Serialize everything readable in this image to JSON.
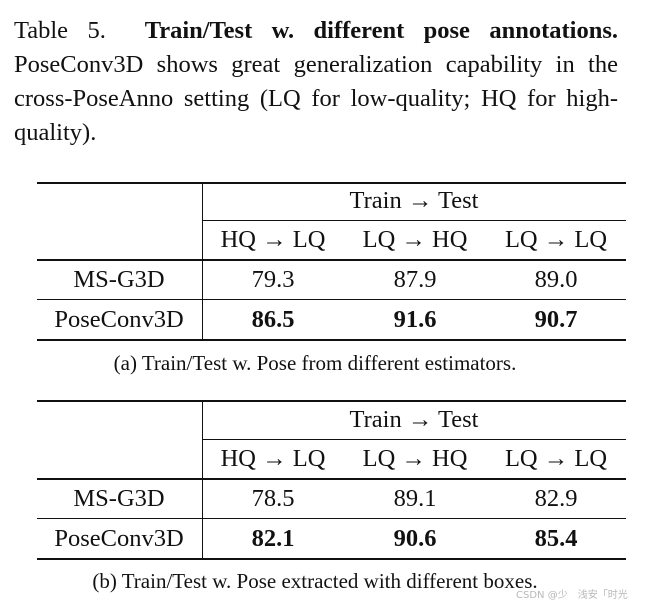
{
  "caption": {
    "label": "Table 5.",
    "title": "Train/Test w.  different pose annotations.",
    "body": "PoseConv3D shows great generalization capability in the cross-PoseAnno setting (LQ for low-quality; HQ for high-quality)."
  },
  "tables": [
    {
      "group_header": "Train → Test",
      "columns": [
        "HQ → LQ",
        "LQ → HQ",
        "LQ → LQ"
      ],
      "rows": [
        {
          "method": "MS-G3D",
          "values": [
            "79.3",
            "87.9",
            "89.0"
          ],
          "bold": false
        },
        {
          "method": "PoseConv3D",
          "values": [
            "86.5",
            "91.6",
            "90.7"
          ],
          "bold": true
        }
      ],
      "subcaption": "(a) Train/Test w. Pose from different estimators."
    },
    {
      "group_header": "Train → Test",
      "columns": [
        "HQ → LQ",
        "LQ → HQ",
        "LQ → LQ"
      ],
      "rows": [
        {
          "method": "MS-G3D",
          "values": [
            "78.5",
            "89.1",
            "82.9"
          ],
          "bold": false
        },
        {
          "method": "PoseConv3D",
          "values": [
            "82.1",
            "90.6",
            "85.4"
          ],
          "bold": true
        }
      ],
      "subcaption": "(b) Train/Test w. Pose extracted with different boxes."
    }
  ],
  "watermark": "CSDN @少　浅安「时光"
}
